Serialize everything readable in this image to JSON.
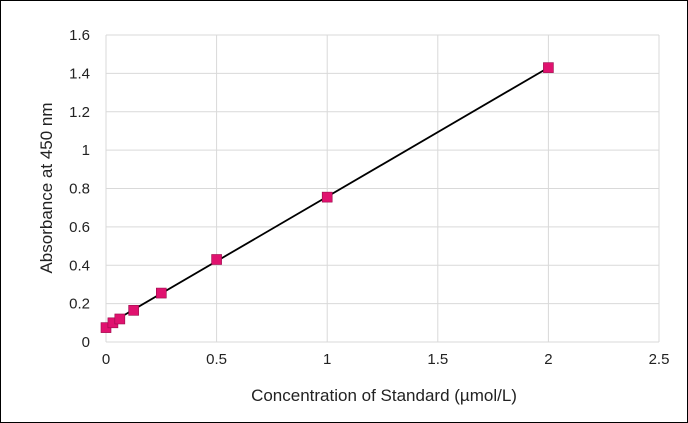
{
  "chart_data": {
    "type": "scatter",
    "title": "",
    "xlabel": "Concentration of Standard (µmol/L)",
    "ylabel": "Absorbance at 450 nm",
    "xlim": [
      0,
      2.5
    ],
    "ylim": [
      0,
      1.6
    ],
    "x_ticks": [
      "0",
      "0.5",
      "1",
      "1.5",
      "2",
      "2.5"
    ],
    "y_ticks": [
      "0",
      "0.2",
      "0.4",
      "0.6",
      "0.8",
      "1",
      "1.2",
      "1.4",
      "1.6"
    ],
    "x_tick_values": [
      0,
      0.5,
      1,
      1.5,
      2,
      2.5
    ],
    "y_tick_values": [
      0,
      0.2,
      0.4,
      0.6,
      0.8,
      1.0,
      1.2,
      1.4,
      1.6
    ],
    "grid": "vertical and horizontal",
    "legend": "none",
    "series": [
      {
        "x": [
          0,
          0.03125,
          0.0625,
          0.125,
          0.25,
          0.5,
          1,
          2
        ],
        "y": [
          0.075,
          0.1,
          0.12,
          0.165,
          0.255,
          0.43,
          0.755,
          1.43
        ],
        "marker": "square",
        "color": "#e0126f"
      }
    ],
    "trendline": {
      "type": "linear",
      "x": [
        0,
        2
      ],
      "y": [
        0.085,
        1.43
      ],
      "color": "#000000"
    },
    "colors": {
      "grid": "#d9d9d9",
      "marker": "#e0126f",
      "trendline": "#000000"
    }
  }
}
